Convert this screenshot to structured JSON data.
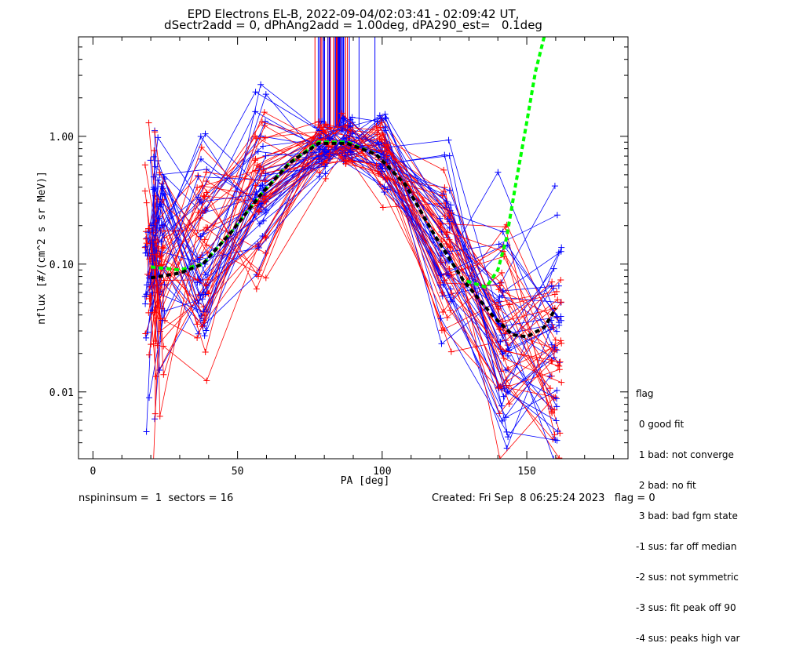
{
  "header": {
    "title_line1": "EPD Electrons EL-B, 2022-09-04/02:03:41 - 02:09:42 UT,",
    "title_line2": "dSectr2add = 0, dPhAng2add = 1.00deg, dPA290_est=   0.1deg"
  },
  "footer": {
    "left": "nspininsum =  1  sectors = 16",
    "right": "Created: Fri Sep  8 06:25:24 2023   flag = 0"
  },
  "legend": {
    "title": "flag",
    "items": [
      " 0 good fit",
      " 1 bad: not converge",
      " 2 bad: no fit",
      " 3 bad: bad fgm state",
      "-1 sus: far off median",
      "-2 sus: not symmetric",
      "-3 sus: fit peak off 90",
      "-4 sus: peaks high var"
    ]
  },
  "colors": {
    "series_a": "#0000ff",
    "series_b": "#ff0000",
    "fit_green": "#00ff00",
    "fit_black": "#000000"
  },
  "chart_data": {
    "type": "line",
    "title": "EPD Electrons EL-B, 2022-09-04/02:03:41 - 02:09:42 UT,",
    "subtitle": "dSectr2add = 0, dPhAng2add = 1.00deg, dPA290_est=   0.1deg",
    "xlabel": "PA [deg]",
    "ylabel": "nflux [#/(cm^2 s sr MeV)]",
    "xlim": [
      -5,
      185
    ],
    "ylim": [
      0.003,
      6
    ],
    "yscale": "log",
    "x_ticks": [
      "0",
      "50",
      "100",
      "150"
    ],
    "y_ticks": [
      "0.01",
      "0.10",
      "1.00"
    ],
    "grid": false,
    "legend_position": "right",
    "pa_bins": [
      20,
      23,
      38,
      58,
      80,
      88,
      100,
      122,
      142,
      160
    ],
    "profile": [
      {
        "pa": 20,
        "blue": 0.09,
        "red": 0.07
      },
      {
        "pa": 23,
        "blue": 0.11,
        "red": 0.08
      },
      {
        "pa": 38,
        "blue": 0.13,
        "red": 0.1
      },
      {
        "pa": 58,
        "blue": 0.4,
        "red": 0.35
      },
      {
        "pa": 80,
        "blue": 0.85,
        "red": 0.82
      },
      {
        "pa": 88,
        "blue": 0.88,
        "red": 0.85
      },
      {
        "pa": 100,
        "blue": 0.75,
        "red": 0.7
      },
      {
        "pa": 122,
        "blue": 0.14,
        "red": 0.13
      },
      {
        "pa": 142,
        "blue": 0.03,
        "red": 0.035
      },
      {
        "pa": 160,
        "blue": 0.02,
        "red": 0.025
      }
    ],
    "series": [
      {
        "name": "",
        "color": "#0000ff"
      },
      {
        "name": "",
        "color": "#ff0000"
      }
    ],
    "fits": [
      {
        "style": "dashed",
        "color": "#00ff00",
        "x": [
          20,
          30,
          38,
          48,
          58,
          68,
          78,
          88,
          98,
          108,
          118,
          128,
          136,
          140,
          143,
          146,
          150,
          153,
          156
        ],
        "y": [
          0.095,
          0.09,
          0.1,
          0.18,
          0.35,
          0.62,
          0.9,
          0.9,
          0.72,
          0.42,
          0.17,
          0.075,
          0.066,
          0.09,
          0.16,
          0.4,
          1.3,
          3.2,
          6.0
        ]
      },
      {
        "style": "dashed",
        "color": "#000000",
        "x": [
          20,
          30,
          38,
          48,
          58,
          68,
          78,
          88,
          98,
          108,
          118,
          128,
          138,
          145,
          150,
          156,
          160
        ],
        "y": [
          0.078,
          0.085,
          0.1,
          0.18,
          0.35,
          0.62,
          0.88,
          0.88,
          0.72,
          0.42,
          0.17,
          0.075,
          0.04,
          0.028,
          0.027,
          0.032,
          0.045
        ]
      }
    ]
  }
}
